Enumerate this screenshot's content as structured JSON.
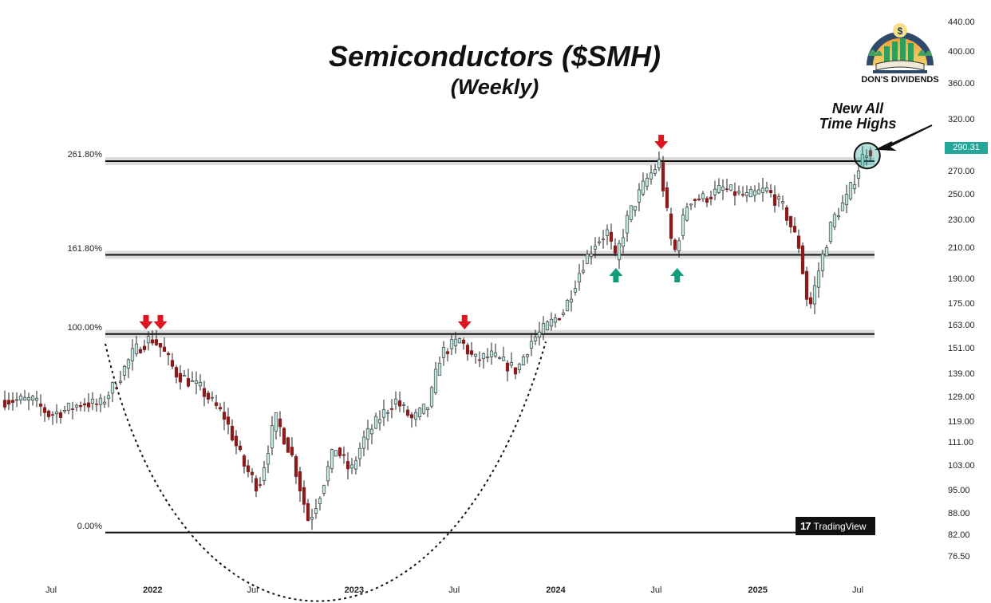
{
  "chart_data": {
    "type": "candlestick",
    "title": "Semiconductors ($SMH)",
    "subtitle": "(Weekly)",
    "y_scale": "log",
    "ylim": [
      72,
      460
    ],
    "y_ticks": [
      440,
      400,
      360,
      320,
      290.31,
      270,
      250,
      230,
      210,
      190,
      175,
      163,
      151,
      139,
      129,
      119,
      111,
      103,
      95,
      88,
      82,
      76.5
    ],
    "y_tick_labels": [
      "440.00",
      "400.00",
      "360.00",
      "320.00",
      "290.31",
      "270.00",
      "250.00",
      "230.00",
      "210.00",
      "190.00",
      "175.00",
      "163.00",
      "151.00",
      "139.00",
      "129.00",
      "119.00",
      "111.00",
      "103.00",
      "95.00",
      "88.00",
      "82.00",
      "76.50"
    ],
    "last_price": "290.31",
    "x_axis_labels": [
      {
        "text": "Jul",
        "date": "2021-07-01",
        "year": false
      },
      {
        "text": "2022",
        "date": "2022-01-01",
        "year": true
      },
      {
        "text": "Jul",
        "date": "2022-07-01",
        "year": false
      },
      {
        "text": "2023",
        "date": "2023-01-01",
        "year": true
      },
      {
        "text": "Jul",
        "date": "2023-07-01",
        "year": false
      },
      {
        "text": "2024",
        "date": "2024-01-01",
        "year": true
      },
      {
        "text": "Jul",
        "date": "2024-07-01",
        "year": false
      },
      {
        "text": "2025",
        "date": "2025-01-01",
        "year": true
      },
      {
        "text": "Jul",
        "date": "2025-07-01",
        "year": false
      }
    ],
    "fib_levels": [
      {
        "label": "261.80%",
        "price": 280
      },
      {
        "label": "161.80%",
        "price": 206
      },
      {
        "label": "100.00%",
        "price": 159
      },
      {
        "label": "0.00%",
        "price": 83
      }
    ],
    "price_path": [
      [
        "2021-06-01",
        128
      ],
      [
        "2021-07-01",
        122
      ],
      [
        "2021-08-01",
        124
      ],
      [
        "2021-09-01",
        127
      ],
      [
        "2021-10-01",
        126
      ],
      [
        "2021-11-01",
        136
      ],
      [
        "2021-12-01",
        150
      ],
      [
        "2022-01-01",
        157
      ],
      [
        "2022-01-20",
        152
      ],
      [
        "2022-02-15",
        140
      ],
      [
        "2022-04-01",
        133
      ],
      [
        "2022-05-15",
        121
      ],
      [
        "2022-06-20",
        103
      ],
      [
        "2022-07-15",
        96
      ],
      [
        "2022-08-15",
        121
      ],
      [
        "2022-09-15",
        106
      ],
      [
        "2022-10-14",
        86
      ],
      [
        "2022-11-01",
        93
      ],
      [
        "2022-12-01",
        110
      ],
      [
        "2022-12-29",
        101
      ],
      [
        "2023-01-20",
        112
      ],
      [
        "2023-02-20",
        121
      ],
      [
        "2023-03-20",
        128
      ],
      [
        "2023-04-20",
        120
      ],
      [
        "2023-05-20",
        126
      ],
      [
        "2023-06-10",
        149
      ],
      [
        "2023-07-15",
        156
      ],
      [
        "2023-08-10",
        146
      ],
      [
        "2023-09-10",
        148
      ],
      [
        "2023-10-26",
        141
      ],
      [
        "2023-11-20",
        155
      ],
      [
        "2023-12-20",
        163
      ],
      [
        "2024-01-20",
        172
      ],
      [
        "2024-02-20",
        198
      ],
      [
        "2024-03-15",
        214
      ],
      [
        "2024-04-10",
        223
      ],
      [
        "2024-04-19",
        200
      ],
      [
        "2024-05-15",
        234
      ],
      [
        "2024-06-15",
        262
      ],
      [
        "2024-07-10",
        279
      ],
      [
        "2024-08-05",
        205
      ],
      [
        "2024-09-01",
        247
      ],
      [
        "2024-10-01",
        248
      ],
      [
        "2024-11-01",
        256
      ],
      [
        "2024-12-15",
        249
      ],
      [
        "2025-01-20",
        255
      ],
      [
        "2025-02-20",
        240
      ],
      [
        "2025-03-20",
        212
      ],
      [
        "2025-04-07",
        171
      ],
      [
        "2025-04-25",
        196
      ],
      [
        "2025-05-20",
        231
      ],
      [
        "2025-06-15",
        248
      ],
      [
        "2025-07-18",
        290
      ]
    ],
    "annotations": {
      "new_ath_text": [
        "New All",
        "Time Highs"
      ],
      "red_arrows_down": [
        "2021-12-20",
        "2022-01-15",
        "2023-07-20",
        "2024-07-10"
      ],
      "green_arrows_up": [
        "2024-04-19",
        "2024-08-08"
      ],
      "cup_curve": "dotted U-shape from late 2021 high to 2022 low to early 2024 breakout",
      "circle_at": "2025-07-18"
    },
    "colors": {
      "up": "#26a69a",
      "down": "#8b1a1a",
      "band": "#dcdcdc",
      "line": "#111111",
      "arrow_down": "#e0141e",
      "arrow_up": "#0f9d7a",
      "badge": "#26a69a"
    },
    "legend": "none",
    "grid": false
  },
  "branding": {
    "logo_text": "DON'S DIVIDENDS",
    "watermark": "TradingView"
  }
}
